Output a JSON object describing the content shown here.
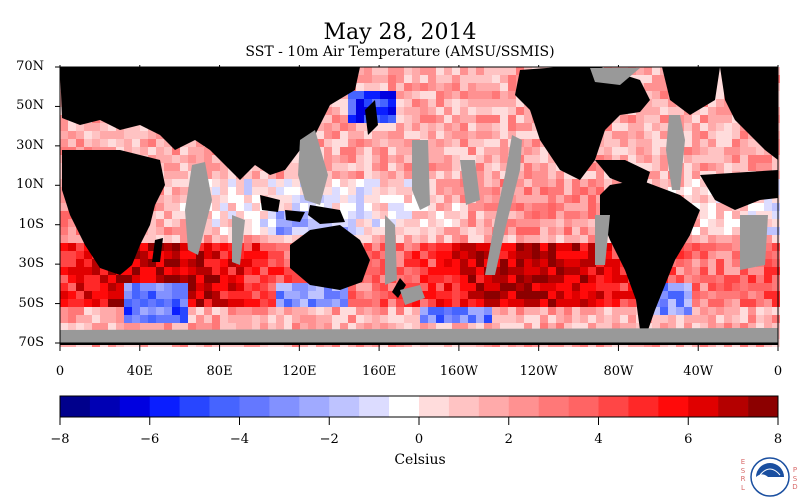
{
  "title": "May 28, 2014",
  "subtitle": "SST - 10m Air Temperature (AMSU/SSMIS)",
  "map": {
    "lat_labels": [
      "70N",
      "50N",
      "30N",
      "10N",
      "10S",
      "30S",
      "50S",
      "70S"
    ],
    "lon_labels": [
      "0",
      "40E",
      "80E",
      "120E",
      "160E",
      "160W",
      "120W",
      "80W",
      "40W",
      "0"
    ],
    "colors": {
      "land": "#000000",
      "no_data": "#999999"
    }
  },
  "colorbar": {
    "tick_labels": [
      "−8",
      "−6",
      "−4",
      "−2",
      "0",
      "2",
      "4",
      "6",
      "8"
    ],
    "range": [
      -8,
      8
    ],
    "colors": [
      "#00008c",
      "#0000b4",
      "#0000e0",
      "#0a1eff",
      "#2846ff",
      "#4664ff",
      "#6478ff",
      "#8291ff",
      "#a0aaff",
      "#bec3ff",
      "#dcdcff",
      "#ffffff",
      "#ffdcdc",
      "#ffc3c3",
      "#ffaaaa",
      "#ff9191",
      "#ff7878",
      "#ff6464",
      "#ff4646",
      "#ff2828",
      "#ff0a0a",
      "#e00000",
      "#b40000",
      "#8c0000"
    ],
    "units": "Celsius"
  },
  "logos": {
    "esrl_text": "ESRL",
    "psd_text": "PSD",
    "noaa_text": "NOAA"
  }
}
